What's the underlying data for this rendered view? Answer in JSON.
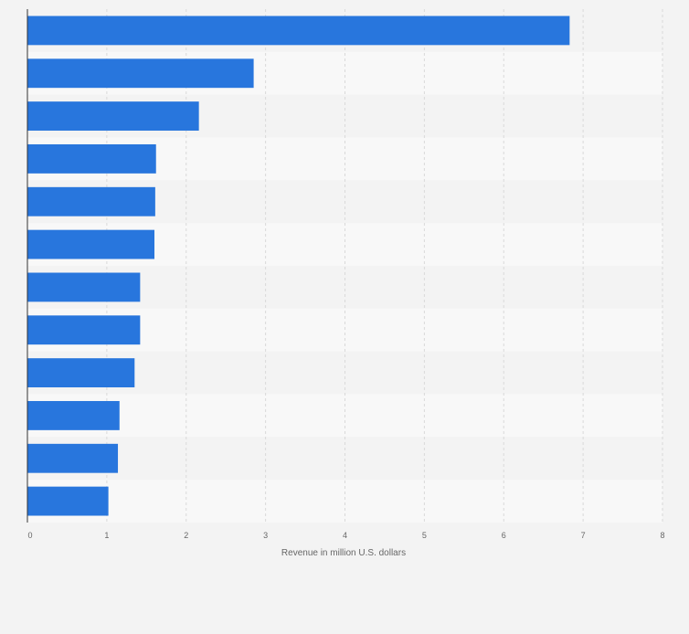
{
  "chart_data": {
    "type": "bar",
    "orientation": "horizontal",
    "categories": [
      "",
      "",
      "",
      "",
      "",
      "",
      "",
      "",
      "",
      "",
      "",
      ""
    ],
    "values": [
      6.83,
      2.85,
      2.16,
      1.62,
      1.61,
      1.6,
      1.42,
      1.42,
      1.35,
      1.16,
      1.14,
      1.02
    ],
    "title": "",
    "xlabel": "Revenue in million U.S. dollars",
    "ylabel": "",
    "xlim": [
      0,
      8
    ],
    "xticks": [
      "0",
      "1",
      "2",
      "3",
      "4",
      "5",
      "6",
      "7",
      "8"
    ],
    "grid": true,
    "bar_color": "#2876dd",
    "band_colors": [
      "#f3f3f3",
      "#f8f8f8"
    ]
  }
}
